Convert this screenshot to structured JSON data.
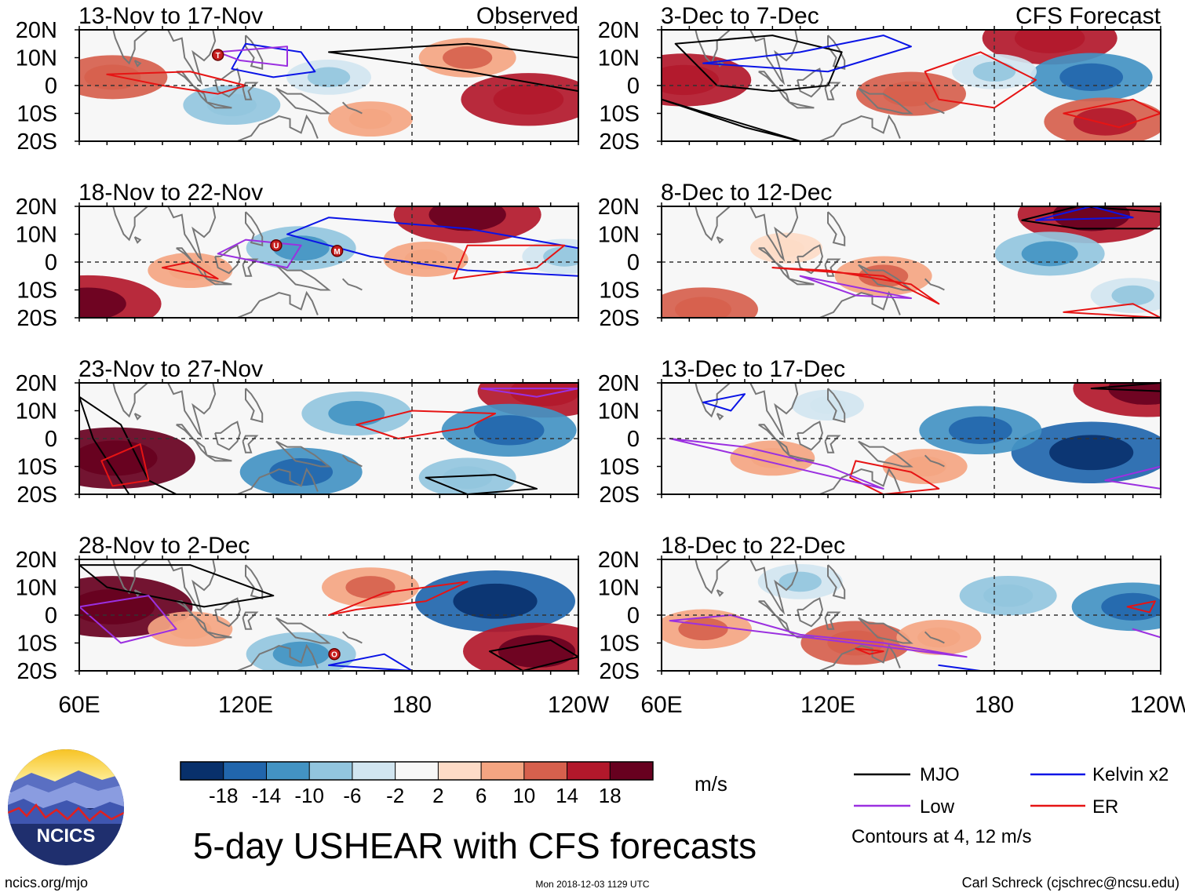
{
  "chart_data": {
    "type": "heatmap",
    "title": "5-day USHEAR with CFS forecasts",
    "variable": "USHEAR",
    "units": "m/s",
    "x_tick_labels": [
      "60E",
      "120E",
      "180",
      "120W"
    ],
    "y_tick_labels": [
      "20N",
      "10N",
      "0",
      "10S",
      "20S"
    ],
    "ylim": [
      -20,
      20
    ],
    "xlim_degrees_east": [
      60,
      240
    ],
    "dashed_reference_lines": {
      "latitude": 0,
      "longitude": 180
    },
    "colorbar": {
      "tick_labels": [
        "-18",
        "-14",
        "-10",
        "-6",
        "-2",
        "2",
        "6",
        "10",
        "14",
        "18"
      ],
      "colors": [
        "#08306b",
        "#2166ac",
        "#4393c3",
        "#92c5de",
        "#d1e5f0",
        "#f7f7f7",
        "#fddbc7",
        "#f4a582",
        "#d6604d",
        "#b2182b",
        "#67001f"
      ]
    },
    "column_headers": {
      "left": "Observed",
      "right": "CFS Forecast"
    },
    "panels": [
      {
        "period": "13-Nov to 17-Nov",
        "source": "Observed",
        "storms": [
          "T"
        ],
        "anomalies": [
          {
            "lon": 72,
            "lat": 3,
            "value": 10
          },
          {
            "lon": 115,
            "lat": -7,
            "value": -8
          },
          {
            "lon": 150,
            "lat": 3,
            "value": -6
          },
          {
            "lon": 222,
            "lat": -5,
            "value": 14
          },
          {
            "lon": 200,
            "lat": 10,
            "value": 8
          },
          {
            "lon": 165,
            "lat": -12,
            "value": 6
          }
        ]
      },
      {
        "period": "18-Nov to 22-Nov",
        "source": "Observed",
        "storms": [
          "U",
          "M"
        ],
        "anomalies": [
          {
            "lon": 200,
            "lat": 17,
            "value": 16
          },
          {
            "lon": 140,
            "lat": 5,
            "value": -10
          },
          {
            "lon": 63,
            "lat": -15,
            "value": 16
          },
          {
            "lon": 100,
            "lat": -3,
            "value": 6
          },
          {
            "lon": 185,
            "lat": 1,
            "value": 6
          },
          {
            "lon": 235,
            "lat": 2,
            "value": -6
          }
        ]
      },
      {
        "period": "23-Nov to 27-Nov",
        "source": "Observed",
        "storms": [],
        "anomalies": [
          {
            "lon": 73,
            "lat": -7,
            "value": 18
          },
          {
            "lon": 228,
            "lat": 17,
            "value": 14
          },
          {
            "lon": 215,
            "lat": 3,
            "value": -14
          },
          {
            "lon": 160,
            "lat": 9,
            "value": -10
          },
          {
            "lon": 140,
            "lat": -12,
            "value": -12
          },
          {
            "lon": 200,
            "lat": -14,
            "value": -8
          }
        ]
      },
      {
        "period": "28-Nov to 2-Dec",
        "source": "Observed",
        "storms": [
          "O"
        ],
        "anomalies": [
          {
            "lon": 72,
            "lat": 3,
            "value": 18
          },
          {
            "lon": 210,
            "lat": 5,
            "value": -18
          },
          {
            "lon": 225,
            "lat": -13,
            "value": 16
          },
          {
            "lon": 165,
            "lat": 10,
            "value": 8
          },
          {
            "lon": 140,
            "lat": -14,
            "value": -10
          },
          {
            "lon": 100,
            "lat": -5,
            "value": 6
          }
        ]
      },
      {
        "period": "3-Dec to 7-Dec",
        "source": "CFS Forecast",
        "storms": [],
        "anomalies": [
          {
            "lon": 68,
            "lat": 2,
            "value": 14
          },
          {
            "lon": 200,
            "lat": 17,
            "value": 14
          },
          {
            "lon": 215,
            "lat": 3,
            "value": -12
          },
          {
            "lon": 220,
            "lat": -13,
            "value": 12
          },
          {
            "lon": 150,
            "lat": -3,
            "value": 10
          },
          {
            "lon": 180,
            "lat": 5,
            "value": -6
          }
        ]
      },
      {
        "period": "8-Dec to 12-Dec",
        "source": "CFS Forecast",
        "storms": [],
        "anomalies": [
          {
            "lon": 215,
            "lat": 17,
            "value": 16
          },
          {
            "lon": 200,
            "lat": 3,
            "value": -10
          },
          {
            "lon": 140,
            "lat": -5,
            "value": 8
          },
          {
            "lon": 75,
            "lat": -17,
            "value": 10
          },
          {
            "lon": 105,
            "lat": 5,
            "value": 4
          },
          {
            "lon": 230,
            "lat": -12,
            "value": -6
          }
        ]
      },
      {
        "period": "13-Dec to 17-Dec",
        "source": "CFS Forecast",
        "storms": [],
        "anomalies": [
          {
            "lon": 215,
            "lat": -5,
            "value": -18
          },
          {
            "lon": 175,
            "lat": 3,
            "value": -12
          },
          {
            "lon": 235,
            "lat": 18,
            "value": 16
          },
          {
            "lon": 100,
            "lat": -7,
            "value": 6
          },
          {
            "lon": 155,
            "lat": -10,
            "value": 6
          },
          {
            "lon": 120,
            "lat": 12,
            "value": -4
          }
        ]
      },
      {
        "period": "18-Dec to 22-Dec",
        "source": "CFS Forecast",
        "storms": [],
        "anomalies": [
          {
            "lon": 230,
            "lat": 3,
            "value": -12
          },
          {
            "lon": 185,
            "lat": 7,
            "value": -8
          },
          {
            "lon": 130,
            "lat": -10,
            "value": 10
          },
          {
            "lon": 75,
            "lat": -5,
            "value": 8
          },
          {
            "lon": 160,
            "lat": -8,
            "value": 6
          },
          {
            "lon": 110,
            "lat": 12,
            "value": -6
          }
        ]
      }
    ],
    "legend": {
      "entries": [
        {
          "label": "MJO",
          "color": "#000000"
        },
        {
          "label": "Kelvin x2",
          "color": "#0a14e6"
        },
        {
          "label": "Low",
          "color": "#9b30e0"
        },
        {
          "label": "ER",
          "color": "#e61414"
        }
      ],
      "note": "Contours at 4, 12 m/s"
    }
  },
  "branding": {
    "logo_text": "NCICS",
    "url_text": "ncics.org/mjo",
    "timestamp": "Mon 2018-12-03 1129 UTC",
    "credit": "Carl Schreck (cjschrec@ncsu.edu)"
  }
}
